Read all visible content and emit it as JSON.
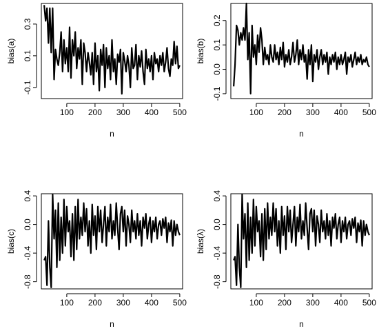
{
  "chart_data": [
    {
      "type": "line",
      "ylabel": "bias(a)",
      "xlabel": "n",
      "xlim": [
        10,
        510
      ],
      "ylim": [
        -0.17,
        0.43
      ],
      "xticks": [
        100,
        200,
        300,
        400,
        500
      ],
      "yticks": [
        -0.1,
        0.1,
        0.3
      ],
      "ytick_labels": [
        "-0.1",
        "0.1",
        "0.3"
      ],
      "series": [
        {
          "x": [
            20,
            25,
            30,
            35,
            40,
            45,
            50,
            55,
            60,
            65,
            70,
            75,
            80,
            85,
            90,
            95,
            100,
            105,
            110,
            115,
            120,
            125,
            130,
            135,
            140,
            145,
            150,
            155,
            160,
            165,
            170,
            175,
            180,
            185,
            190,
            195,
            200,
            205,
            210,
            215,
            220,
            225,
            230,
            235,
            240,
            245,
            250,
            255,
            260,
            265,
            270,
            275,
            280,
            285,
            290,
            295,
            300,
            305,
            310,
            315,
            320,
            325,
            330,
            335,
            340,
            345,
            350,
            355,
            360,
            365,
            370,
            375,
            380,
            385,
            390,
            395,
            400,
            405,
            410,
            415,
            420,
            425,
            430,
            435,
            440,
            445,
            450,
            455,
            460,
            465,
            470,
            475,
            480,
            485,
            490,
            495,
            500
          ],
          "y": [
            0.42,
            0.32,
            0.4,
            0.18,
            0.4,
            0.12,
            0.4,
            -0.05,
            0.14,
            0.08,
            0.04,
            0.12,
            0.25,
            0.0,
            0.2,
            0.05,
            0.15,
            0.0,
            0.28,
            -0.04,
            0.2,
            0.1,
            0.25,
            0.02,
            0.15,
            0.08,
            0.2,
            -0.08,
            0.18,
            0.12,
            0.0,
            0.12,
            0.06,
            -0.02,
            0.12,
            -0.08,
            0.18,
            0.0,
            0.1,
            -0.12,
            0.14,
            0.04,
            0.17,
            -0.1,
            0.15,
            0.02,
            0.1,
            -0.05,
            0.2,
            0.0,
            0.08,
            -0.08,
            0.11,
            0.06,
            0.14,
            -0.14,
            0.12,
            0.07,
            0.0,
            0.1,
            0.04,
            -0.1,
            0.15,
            0.02,
            0.04,
            0.17,
            -0.05,
            0.1,
            0.03,
            0.13,
            0.0,
            -0.08,
            0.14,
            0.02,
            0.08,
            0.0,
            0.1,
            -0.05,
            0.12,
            0.05,
            0.08,
            0.0,
            0.1,
            0.04,
            0.12,
            0.0,
            0.06,
            0.15,
            0.02,
            -0.03,
            0.08,
            0.04,
            0.19,
            0.05,
            0.16,
            0.02,
            0.04
          ]
        }
      ]
    },
    {
      "type": "line",
      "ylabel": "bias(b)",
      "xlabel": "n",
      "xlim": [
        10,
        510
      ],
      "ylim": [
        -0.12,
        0.27
      ],
      "xticks": [
        100,
        200,
        300,
        400,
        500
      ],
      "yticks": [
        -0.1,
        0.0,
        0.1,
        0.2
      ],
      "ytick_labels": [
        "-0.1",
        "0.0",
        "0.1",
        "0.2"
      ],
      "series": [
        {
          "x": [
            20,
            25,
            30,
            35,
            40,
            45,
            50,
            55,
            60,
            65,
            70,
            75,
            80,
            85,
            90,
            95,
            100,
            105,
            110,
            115,
            120,
            125,
            130,
            135,
            140,
            145,
            150,
            155,
            160,
            165,
            170,
            175,
            180,
            185,
            190,
            195,
            200,
            205,
            210,
            215,
            220,
            225,
            230,
            235,
            240,
            245,
            250,
            255,
            260,
            265,
            270,
            275,
            280,
            285,
            290,
            295,
            300,
            305,
            310,
            315,
            320,
            325,
            330,
            335,
            340,
            345,
            350,
            355,
            360,
            365,
            370,
            375,
            380,
            385,
            390,
            395,
            400,
            405,
            410,
            415,
            420,
            425,
            430,
            435,
            440,
            445,
            450,
            455,
            460,
            465,
            470,
            475,
            480,
            485,
            490,
            495,
            500
          ],
          "y": [
            -0.07,
            0.02,
            0.18,
            0.16,
            0.1,
            0.15,
            0.12,
            0.17,
            0.12,
            0.27,
            0.04,
            0.15,
            -0.1,
            0.18,
            0.05,
            0.1,
            0.02,
            0.14,
            0.07,
            0.17,
            0.12,
            0.02,
            0.09,
            0.04,
            0.06,
            0.02,
            0.1,
            0.05,
            0.03,
            0.1,
            0.04,
            0.07,
            0.02,
            0.09,
            0.04,
            0.11,
            0.01,
            0.06,
            0.03,
            0.08,
            0.02,
            0.05,
            0.11,
            0.03,
            0.06,
            0.12,
            0.02,
            0.08,
            0.04,
            0.1,
            0.03,
            0.06,
            -0.04,
            0.08,
            0.02,
            0.1,
            -0.05,
            0.06,
            0.03,
            0.08,
            0.0,
            0.05,
            0.08,
            0.02,
            0.06,
            0.03,
            0.07,
            -0.02,
            0.05,
            0.02,
            0.06,
            0.03,
            0.07,
            0.0,
            0.05,
            0.02,
            0.06,
            0.02,
            0.04,
            0.07,
            -0.02,
            0.05,
            0.03,
            0.06,
            0.01,
            0.04,
            0.07,
            0.02,
            0.05,
            0.03,
            0.06,
            0.02,
            0.04,
            0.03,
            0.05,
            0.02,
            0.01
          ]
        }
      ]
    },
    {
      "type": "line",
      "ylabel": "bias(c)",
      "xlabel": "n",
      "xlim": [
        10,
        510
      ],
      "ylim": [
        -0.9,
        0.43
      ],
      "xticks": [
        100,
        200,
        300,
        400,
        500
      ],
      "yticks": [
        -0.8,
        -0.4,
        0.0,
        0.4
      ],
      "ytick_labels": [
        "-0.8",
        "-0.4",
        "0.0",
        "0.4"
      ],
      "series": [
        {
          "x": [
            20,
            25,
            30,
            35,
            40,
            45,
            50,
            55,
            60,
            65,
            70,
            75,
            80,
            85,
            90,
            95,
            100,
            105,
            110,
            115,
            120,
            125,
            130,
            135,
            140,
            145,
            150,
            155,
            160,
            165,
            170,
            175,
            180,
            185,
            190,
            195,
            200,
            205,
            210,
            215,
            220,
            225,
            230,
            235,
            240,
            245,
            250,
            255,
            260,
            265,
            270,
            275,
            280,
            285,
            290,
            295,
            300,
            305,
            310,
            315,
            320,
            325,
            330,
            335,
            340,
            345,
            350,
            355,
            360,
            365,
            370,
            375,
            380,
            385,
            390,
            395,
            400,
            405,
            410,
            415,
            420,
            425,
            430,
            435,
            440,
            445,
            450,
            455,
            460,
            465,
            470,
            475,
            480,
            485,
            490,
            495,
            500
          ],
          "y": [
            -0.5,
            -0.45,
            -0.85,
            0.05,
            -0.6,
            -0.88,
            0.42,
            -0.2,
            0.2,
            -0.6,
            0.3,
            -0.5,
            0.1,
            -0.4,
            0.35,
            -0.3,
            0.25,
            -0.1,
            0.05,
            -0.45,
            0.15,
            -0.5,
            0.25,
            -0.35,
            0.35,
            -0.2,
            0.1,
            -0.15,
            0.3,
            -0.1,
            0.22,
            -0.3,
            0.05,
            -0.4,
            0.28,
            -0.15,
            0.12,
            -0.35,
            0.25,
            -0.1,
            0.2,
            -0.25,
            0.0,
            0.25,
            -0.3,
            0.1,
            -0.1,
            0.28,
            -0.2,
            0.05,
            -0.15,
            0.3,
            -0.05,
            -0.35,
            0.15,
            0.25,
            -0.1,
            0.2,
            -0.3,
            0.12,
            0.0,
            -0.25,
            0.2,
            -0.1,
            0.05,
            -0.2,
            0.15,
            -0.15,
            0.05,
            -0.3,
            0.1,
            -0.05,
            0.15,
            -0.2,
            0.0,
            0.1,
            -0.25,
            0.05,
            -0.1,
            0.1,
            -0.2,
            0.0,
            0.05,
            -0.15,
            0.08,
            -0.05,
            0.1,
            -0.25,
            0.02,
            -0.1,
            0.06,
            -0.3,
            0.05,
            -0.15,
            0.0,
            -0.1,
            -0.15
          ]
        }
      ]
    },
    {
      "type": "line",
      "ylabel": "bias(λ)",
      "xlabel": "n",
      "xlim": [
        10,
        510
      ],
      "ylim": [
        -0.9,
        0.43
      ],
      "xticks": [
        100,
        200,
        300,
        400,
        500
      ],
      "yticks": [
        -0.8,
        -0.4,
        0.0,
        0.4
      ],
      "ytick_labels": [
        "-0.8",
        "-0.4",
        "0.0",
        "0.4"
      ],
      "series": [
        {
          "x": [
            20,
            25,
            30,
            35,
            40,
            45,
            50,
            55,
            60,
            65,
            70,
            75,
            80,
            85,
            90,
            95,
            100,
            105,
            110,
            115,
            120,
            125,
            130,
            135,
            140,
            145,
            150,
            155,
            160,
            165,
            170,
            175,
            180,
            185,
            190,
            195,
            200,
            205,
            210,
            215,
            220,
            225,
            230,
            235,
            240,
            245,
            250,
            255,
            260,
            265,
            270,
            275,
            280,
            285,
            290,
            295,
            300,
            305,
            310,
            315,
            320,
            325,
            330,
            335,
            340,
            345,
            350,
            355,
            360,
            365,
            370,
            375,
            380,
            385,
            390,
            395,
            400,
            405,
            410,
            415,
            420,
            425,
            430,
            435,
            440,
            445,
            450,
            455,
            460,
            465,
            470,
            475,
            480,
            485,
            490,
            495,
            500
          ],
          "y": [
            -0.5,
            -0.45,
            -0.85,
            0.0,
            -0.6,
            -0.88,
            0.42,
            -0.2,
            0.15,
            -0.6,
            0.3,
            -0.5,
            0.1,
            -0.4,
            0.35,
            -0.3,
            0.25,
            -0.1,
            0.05,
            -0.45,
            0.15,
            -0.5,
            0.22,
            -0.35,
            0.3,
            -0.2,
            0.1,
            -0.15,
            0.3,
            -0.1,
            0.22,
            -0.3,
            0.05,
            -0.4,
            0.25,
            -0.15,
            0.12,
            -0.35,
            0.25,
            -0.1,
            0.2,
            -0.25,
            0.0,
            0.25,
            -0.3,
            0.1,
            -0.1,
            0.28,
            -0.2,
            0.05,
            -0.15,
            0.3,
            -0.05,
            -0.35,
            0.15,
            0.22,
            -0.1,
            0.2,
            -0.3,
            0.12,
            0.0,
            -0.25,
            0.2,
            -0.1,
            0.05,
            -0.2,
            0.15,
            -0.15,
            0.05,
            -0.3,
            0.1,
            -0.05,
            0.15,
            -0.2,
            0.0,
            0.1,
            -0.25,
            0.05,
            -0.1,
            0.1,
            -0.2,
            0.0,
            0.05,
            -0.15,
            0.08,
            -0.05,
            0.1,
            -0.25,
            0.02,
            -0.1,
            0.06,
            -0.3,
            0.05,
            -0.15,
            0.0,
            -0.1,
            -0.15
          ]
        }
      ]
    }
  ]
}
